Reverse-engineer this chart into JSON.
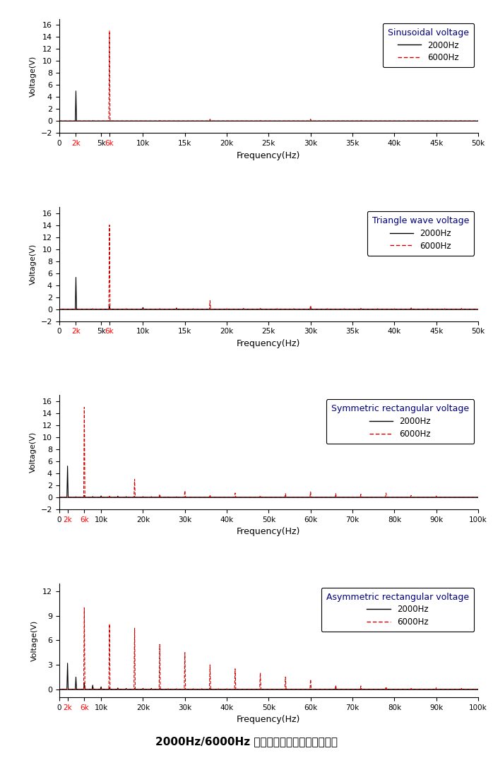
{
  "subplots": [
    {
      "title": "Sinusoidal voltage",
      "xlim": [
        0,
        50000
      ],
      "ylim": [
        -2,
        17
      ],
      "xtick_vals": [
        0,
        2000,
        5000,
        6000,
        10000,
        15000,
        20000,
        25000,
        30000,
        35000,
        40000,
        45000,
        50000
      ],
      "xtick_labels": [
        "0",
        "2k",
        "5k",
        "6k",
        "10k",
        "15k",
        "20k",
        "25k",
        "30k",
        "35k",
        "40k",
        "45k",
        "50k"
      ],
      "xtick_colors": [
        "black",
        "red",
        "black",
        "red",
        "black",
        "black",
        "black",
        "black",
        "black",
        "black",
        "black",
        "black",
        "black"
      ],
      "ytick_vals": [
        -2,
        0,
        2,
        4,
        6,
        8,
        10,
        12,
        14,
        16
      ],
      "s2_freqs": [
        2000,
        4000,
        6000,
        8000,
        10000,
        12000,
        14000,
        16000,
        18000,
        20000,
        22000,
        24000,
        26000,
        28000,
        30000,
        32000,
        34000,
        36000,
        38000,
        40000,
        42000,
        44000,
        46000,
        48000,
        50000
      ],
      "s2_amps": [
        5.0,
        0.05,
        0.02,
        0.01,
        0.01,
        0.01,
        0.01,
        0.01,
        0.01,
        0.01,
        0.01,
        0.01,
        0.01,
        0.01,
        0.01,
        0.01,
        0.01,
        0.01,
        0.01,
        0.01,
        0.01,
        0.01,
        0.01,
        0.01,
        0.01
      ],
      "s6_freqs": [
        6000,
        12000,
        18000,
        24000,
        30000,
        36000,
        42000,
        48000
      ],
      "s6_amps": [
        15.0,
        0.05,
        0.3,
        0.05,
        0.3,
        0.05,
        0.05,
        0.05
      ]
    },
    {
      "title": "Triangle wave voltage",
      "xlim": [
        0,
        50000
      ],
      "ylim": [
        -2,
        17
      ],
      "xtick_vals": [
        0,
        2000,
        5000,
        6000,
        10000,
        15000,
        20000,
        25000,
        30000,
        35000,
        40000,
        45000,
        50000
      ],
      "xtick_labels": [
        "0",
        "2k",
        "5k",
        "6k",
        "10k",
        "15k",
        "20k",
        "25k",
        "30k",
        "35k",
        "40k",
        "45k",
        "50k"
      ],
      "xtick_colors": [
        "black",
        "red",
        "black",
        "red",
        "black",
        "black",
        "black",
        "black",
        "black",
        "black",
        "black",
        "black",
        "black"
      ],
      "ytick_vals": [
        -2,
        0,
        2,
        4,
        6,
        8,
        10,
        12,
        14,
        16
      ],
      "s2_freqs": [
        2000,
        4000,
        6000,
        8000,
        10000,
        12000,
        14000,
        16000,
        18000,
        20000,
        22000,
        24000,
        26000,
        28000,
        30000,
        32000,
        34000,
        36000,
        38000,
        40000,
        42000,
        44000,
        46000,
        48000
      ],
      "s2_amps": [
        5.3,
        0.05,
        0.55,
        0.05,
        0.28,
        0.05,
        0.18,
        0.05,
        0.1,
        0.05,
        0.1,
        0.05,
        0.05,
        0.05,
        0.05,
        0.05,
        0.05,
        0.05,
        0.05,
        0.05,
        0.05,
        0.05,
        0.05,
        0.05
      ],
      "s6_freqs": [
        6000,
        12000,
        18000,
        24000,
        30000,
        36000,
        42000,
        48000
      ],
      "s6_amps": [
        14.0,
        0.05,
        1.4,
        0.1,
        0.6,
        0.1,
        0.2,
        0.1
      ]
    },
    {
      "title": "Symmetric rectangular voltage",
      "xlim": [
        0,
        100000
      ],
      "ylim": [
        -2,
        17
      ],
      "xtick_vals": [
        0,
        2000,
        6000,
        10000,
        20000,
        30000,
        40000,
        50000,
        60000,
        70000,
        80000,
        90000,
        100000
      ],
      "xtick_labels": [
        "0",
        "2k",
        "6k",
        "10k",
        "20k",
        "30k",
        "40k",
        "50k",
        "60k",
        "70k",
        "80k",
        "90k",
        "100k"
      ],
      "xtick_colors": [
        "black",
        "red",
        "red",
        "black",
        "black",
        "black",
        "black",
        "black",
        "black",
        "black",
        "black",
        "black",
        "black"
      ],
      "ytick_vals": [
        -2,
        0,
        2,
        4,
        6,
        8,
        10,
        12,
        14,
        16
      ],
      "s2_freqs": [
        2000,
        4000,
        6000,
        8000,
        10000,
        12000,
        14000,
        16000,
        18000,
        20000,
        22000,
        24000,
        26000,
        28000,
        30000
      ],
      "s2_amps": [
        5.2,
        0.08,
        0.3,
        0.12,
        0.22,
        0.12,
        0.18,
        0.1,
        0.12,
        0.1,
        0.1,
        0.08,
        0.05,
        0.05,
        0.05
      ],
      "s6_freqs": [
        6000,
        12000,
        18000,
        24000,
        30000,
        36000,
        42000,
        48000,
        54000,
        60000,
        66000,
        72000,
        78000,
        84000,
        90000,
        96000
      ],
      "s6_amps": [
        15.0,
        0.3,
        3.0,
        0.5,
        1.1,
        0.4,
        0.7,
        0.3,
        0.6,
        0.9,
        0.6,
        0.5,
        0.7,
        0.3,
        0.2,
        0.1
      ]
    },
    {
      "title": "Asymmetric rectangular voltage",
      "xlim": [
        0,
        100000
      ],
      "ylim": [
        -1,
        13
      ],
      "xtick_vals": [
        0,
        2000,
        6000,
        10000,
        20000,
        30000,
        40000,
        50000,
        60000,
        70000,
        80000,
        90000,
        100000
      ],
      "xtick_labels": [
        "0",
        "2k",
        "6k",
        "10k",
        "20k",
        "30k",
        "40k",
        "50k",
        "60k",
        "70k",
        "80k",
        "90k",
        "100k"
      ],
      "xtick_colors": [
        "black",
        "red",
        "red",
        "black",
        "black",
        "black",
        "black",
        "black",
        "black",
        "black",
        "black",
        "black",
        "black"
      ],
      "ytick_vals": [
        0,
        3,
        6,
        9,
        12
      ],
      "s2_freqs": [
        2000,
        4000,
        6000,
        8000,
        10000,
        12000,
        14000,
        16000,
        18000,
        20000,
        22000,
        24000,
        26000,
        28000,
        30000,
        32000,
        34000,
        36000,
        38000,
        40000
      ],
      "s2_amps": [
        3.2,
        1.5,
        0.8,
        0.5,
        0.3,
        0.2,
        0.15,
        0.1,
        0.1,
        0.1,
        0.1,
        0.1,
        0.05,
        0.05,
        0.05,
        0.05,
        0.05,
        0.05,
        0.05,
        0.05
      ],
      "s6_freqs": [
        6000,
        12000,
        18000,
        24000,
        30000,
        36000,
        42000,
        48000,
        54000,
        60000,
        66000,
        72000,
        78000,
        84000,
        90000,
        96000
      ],
      "s6_amps": [
        10.0,
        8.0,
        7.5,
        5.5,
        4.5,
        3.0,
        2.5,
        2.0,
        1.5,
        1.2,
        0.5,
        0.4,
        0.3,
        0.2,
        0.2,
        0.1
      ]
    }
  ],
  "color_2000": "#000000",
  "color_6000": "#cc0000",
  "ylabel": "Voltage(V)",
  "xlabel": "Frequency(Hz)",
  "main_title": "2000Hz/6000Hz 下不同激励波形的电压频谱图"
}
